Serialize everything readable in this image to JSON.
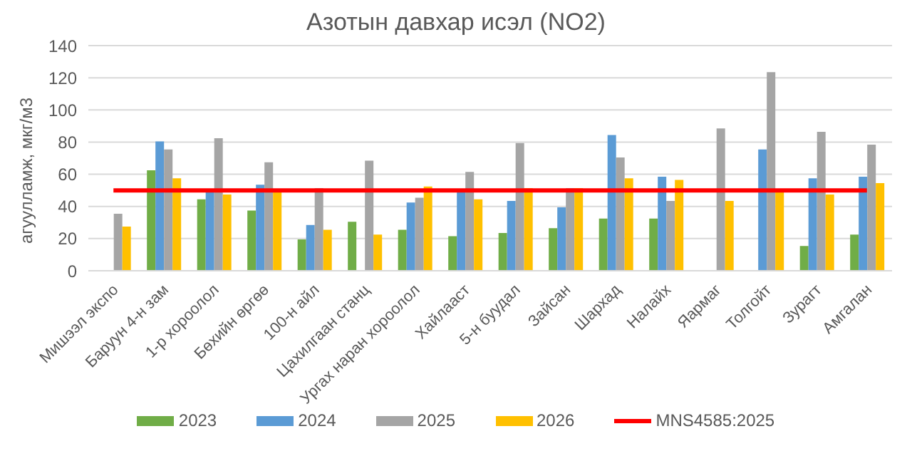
{
  "chart_data": {
    "type": "bar",
    "title": "Азотын давхар исэл (NO2)",
    "ylabel": "агуулламж, мкг/м3",
    "categories": [
      "Мишээл экспо",
      "Баруун 4-н зам",
      "1-р хороолол",
      "Бөхийн өргөө",
      "100-н айл",
      "Цахилгаан станц",
      "Ургах наран хороолол",
      "Хайлааст",
      "5-н буудал",
      "Зайсан",
      "Шархад",
      "Налайх",
      "Яармаг",
      "Толгойт",
      "Зурагт",
      "Амгалан"
    ],
    "series": [
      {
        "name": "2023",
        "color": "#70ad47",
        "values": [
          null,
          62,
          44,
          37,
          19,
          30,
          25,
          21,
          23,
          26,
          32,
          32,
          null,
          null,
          15,
          22
        ]
      },
      {
        "name": "2024",
        "color": "#5b9bd5",
        "values": [
          null,
          80,
          50,
          53,
          28,
          null,
          42,
          50,
          43,
          39,
          84,
          58,
          null,
          75,
          57,
          58
        ]
      },
      {
        "name": "2025",
        "color": "#a5a5a5",
        "values": [
          35,
          75,
          82,
          67,
          51,
          68,
          45,
          61,
          79,
          51,
          70,
          43,
          88,
          123,
          86,
          78
        ]
      },
      {
        "name": "2026",
        "color": "#ffc000",
        "values": [
          27,
          57,
          47,
          50,
          25,
          22,
          52,
          44,
          51,
          51,
          57,
          56,
          43,
          49,
          47,
          54
        ]
      },
      {
        "name": "MNS4585:2025",
        "type": "line",
        "color": "#ff0000",
        "values": [
          50,
          50,
          50,
          50,
          50,
          50,
          50,
          50,
          50,
          50,
          50,
          50,
          50,
          50,
          50,
          50
        ]
      }
    ],
    "ylim": [
      0,
      140
    ],
    "yticks": [
      0,
      20,
      40,
      60,
      80,
      100,
      120,
      140
    ],
    "grid": "y",
    "legend": "bottom",
    "marker": "none"
  }
}
